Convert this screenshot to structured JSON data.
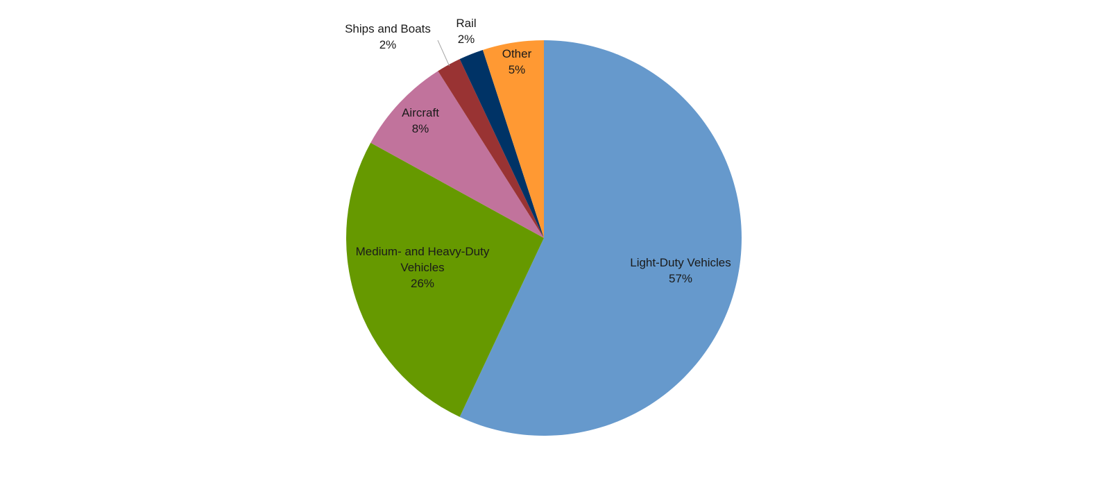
{
  "chart_data": {
    "type": "pie",
    "title": "",
    "slices": [
      {
        "label": "Light-Duty Vehicles",
        "value": 57,
        "value_label": "57%",
        "color": "#6699CC"
      },
      {
        "label": "Medium- and Heavy-Duty Vehicles",
        "label_lines": [
          "Medium- and Heavy-Duty",
          "Vehicles"
        ],
        "value": 26,
        "value_label": "26%",
        "color": "#669900"
      },
      {
        "label": "Aircraft",
        "value": 8,
        "value_label": "8%",
        "color": "#C1739C"
      },
      {
        "label": "Ships and Boats",
        "value": 2,
        "value_label": "2%",
        "color": "#993333"
      },
      {
        "label": "Rail",
        "value": 2,
        "value_label": "2%",
        "color": "#003366"
      },
      {
        "label": "Other",
        "value": 5,
        "value_label": "5%",
        "color": "#FF9933"
      }
    ],
    "start_angle": "12 o'clock",
    "direction": "clockwise",
    "legend": "none",
    "data_labels": "category name and percentage"
  }
}
